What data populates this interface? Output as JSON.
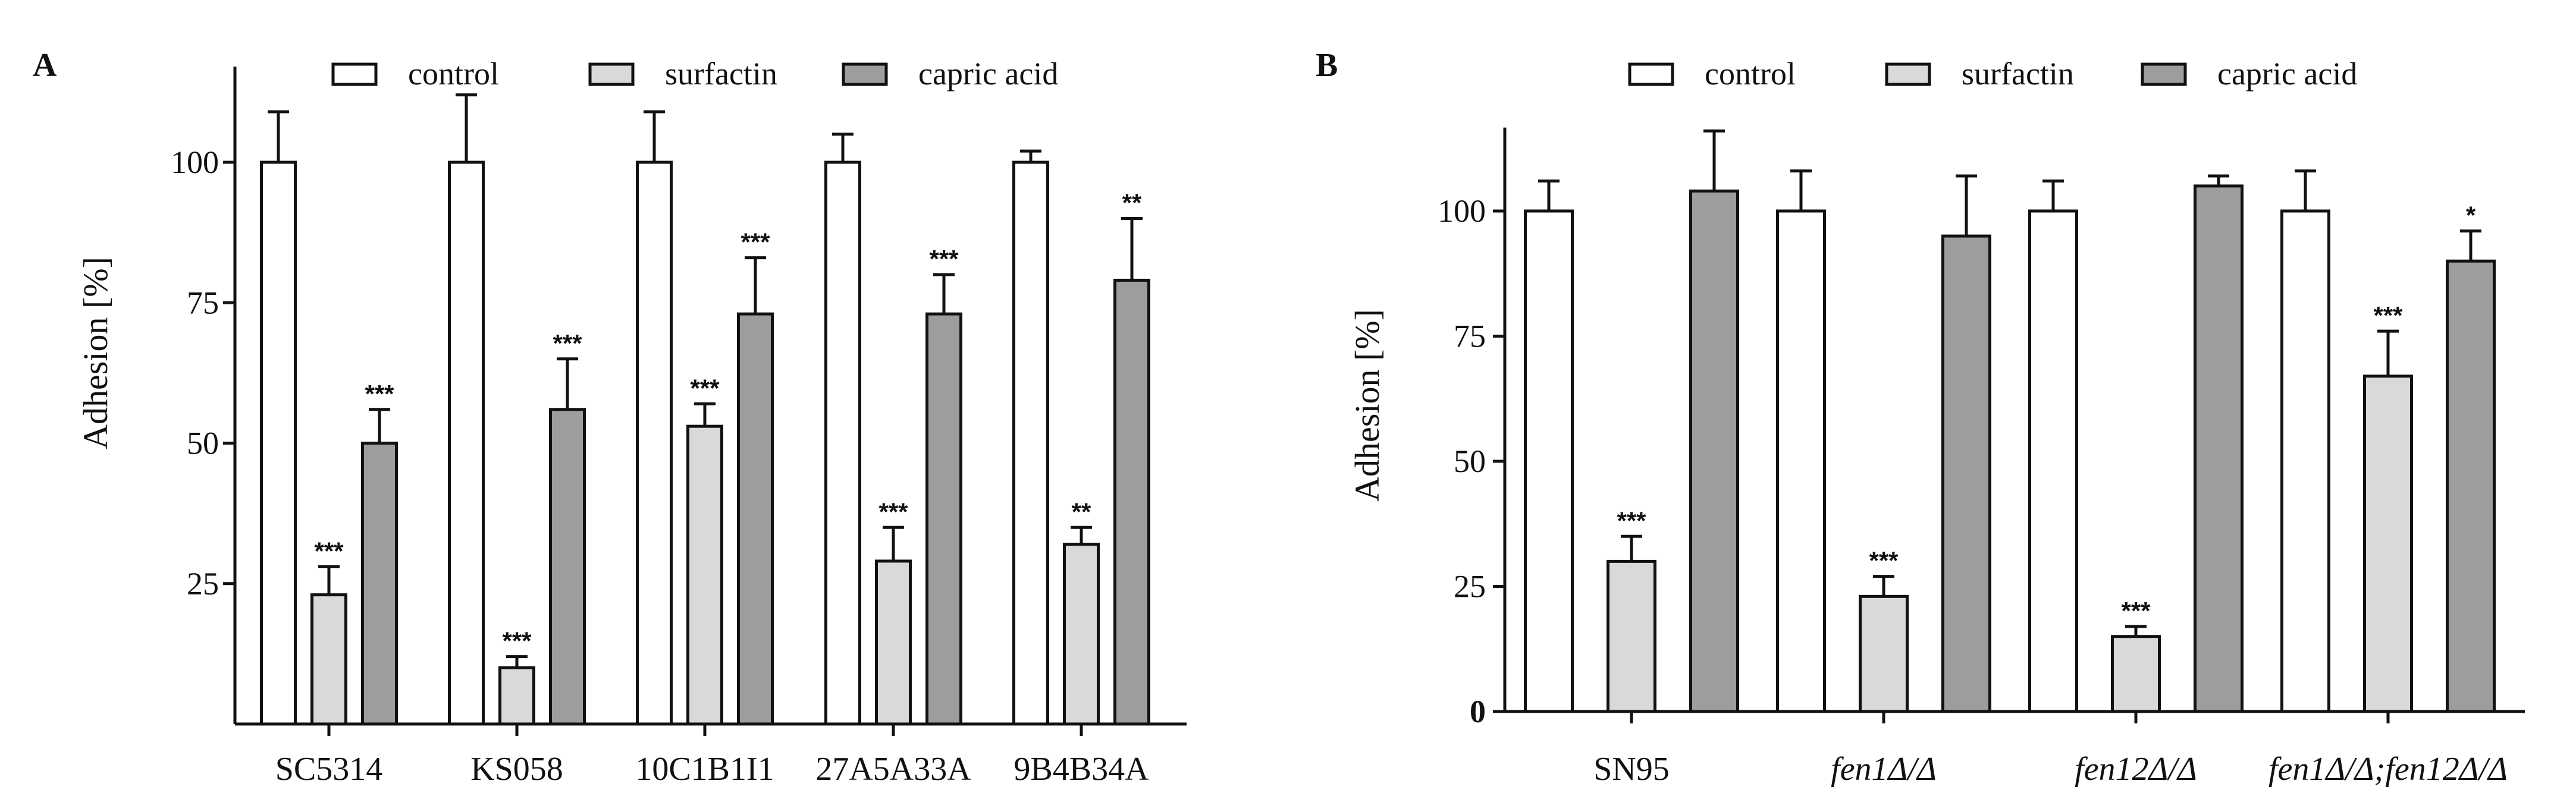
{
  "colors": {
    "control": "#ffffff",
    "surfactin": "#d9d9d9",
    "capric_acid": "#9c9e9d",
    "stroke": "#111111"
  },
  "legend": {
    "control": "control",
    "surfactin": "surfactin",
    "capric_acid": "capric acid"
  },
  "chart_data": [
    {
      "panel": "A",
      "type": "bar",
      "title": "",
      "ylabel": "Adhesion [%]",
      "xlabel": "",
      "ylim": [
        0,
        120
      ],
      "yticks": [
        "25",
        "50",
        "75",
        "100"
      ],
      "ytick_values": [
        25,
        50,
        75,
        100
      ],
      "categories": [
        "SC5314",
        "KS058",
        "10C1B1I1",
        "27A5A33A",
        "9B4B34A"
      ],
      "series": [
        {
          "name": "control",
          "values": [
            100,
            100,
            100,
            100,
            100
          ],
          "errors": [
            9,
            12,
            9,
            5,
            2
          ],
          "significance": [
            "",
            "",
            "",
            "",
            ""
          ]
        },
        {
          "name": "surfactin",
          "values": [
            23,
            10,
            53,
            29,
            32
          ],
          "errors": [
            5,
            2,
            4,
            6,
            3
          ],
          "significance": [
            "***",
            "***",
            "***",
            "***",
            "**"
          ]
        },
        {
          "name": "capric acid",
          "values": [
            50,
            56,
            73,
            73,
            79
          ],
          "errors": [
            6,
            9,
            10,
            7,
            11
          ],
          "significance": [
            "***",
            "***",
            "***",
            "***",
            "**"
          ]
        }
      ]
    },
    {
      "panel": "B",
      "type": "bar",
      "title": "",
      "ylabel": "Adhesion [%]",
      "xlabel": "",
      "ylim": [
        0,
        120
      ],
      "yticks": [
        "0",
        "25",
        "50",
        "75",
        "100"
      ],
      "ytick_values": [
        0,
        25,
        50,
        75,
        100
      ],
      "categories": [
        "SN95",
        "fen1Δ/Δ",
        "fen12Δ/Δ",
        "fen1Δ/Δ;fen12Δ/Δ"
      ],
      "category_italic": [
        false,
        true,
        true,
        true
      ],
      "series": [
        {
          "name": "control",
          "values": [
            100,
            100,
            100,
            100
          ],
          "errors": [
            6,
            8,
            6,
            8
          ],
          "significance": [
            "",
            "",
            "",
            ""
          ]
        },
        {
          "name": "surfactin",
          "values": [
            30,
            23,
            15,
            67
          ],
          "errors": [
            5,
            4,
            2,
            9
          ],
          "significance": [
            "***",
            "***",
            "***",
            "***"
          ]
        },
        {
          "name": "capric acid",
          "values": [
            104,
            95,
            105,
            90
          ],
          "errors": [
            12,
            12,
            2,
            6
          ],
          "significance": [
            "",
            "",
            "",
            "*"
          ]
        }
      ]
    }
  ]
}
